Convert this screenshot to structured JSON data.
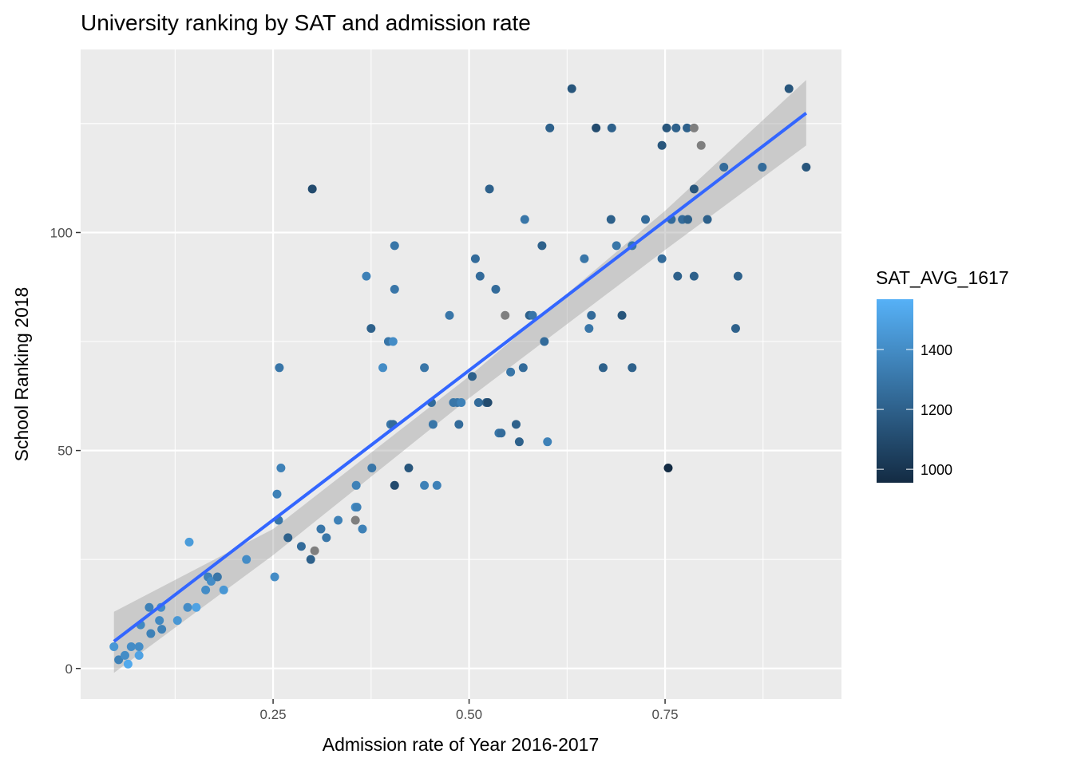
{
  "chart_data": {
    "type": "scatter",
    "title": "University ranking by SAT and admission rate",
    "xlabel": "Admission rate of Year 2016-2017",
    "ylabel": "School Ranking 2018",
    "xlim": [
      0.0045,
      0.975
    ],
    "ylim": [
      -7,
      142
    ],
    "x_ticks": [
      0.25,
      0.5,
      0.75
    ],
    "x_tick_labels": [
      "0.25",
      "0.50",
      "0.75"
    ],
    "y_ticks": [
      0,
      50,
      100
    ],
    "y_tick_labels": [
      "0",
      "50",
      "100"
    ],
    "grid": true,
    "legend": {
      "title": "SAT_AVG_1617",
      "placement": "right",
      "range": [
        955,
        1568
      ],
      "ticks": [
        1000,
        1200,
        1400
      ],
      "tick_labels": [
        "1000",
        "1200",
        "1400"
      ],
      "low_color": "#132B43",
      "high_color": "#56B1F7",
      "na_color": "#7F7F7F"
    },
    "fit": {
      "method": "lm",
      "color": "#3366FF",
      "x": [
        0.047,
        0.93
      ],
      "y": [
        6.2,
        127.4
      ],
      "ribbon_x": [
        0.047,
        0.25,
        0.5,
        0.75,
        0.93
      ],
      "ribbon_low": [
        -1,
        26,
        62,
        96,
        120
      ],
      "ribbon_high": [
        13,
        32,
        67,
        105,
        135
      ]
    },
    "points": [
      [
        0.047,
        5,
        1450
      ],
      [
        0.053,
        2,
        1350
      ],
      [
        0.061,
        3,
        1400
      ],
      [
        0.065,
        1,
        1530
      ],
      [
        0.069,
        5,
        1400
      ],
      [
        0.079,
        3,
        1500
      ],
      [
        0.079,
        5,
        1400
      ],
      [
        0.081,
        10,
        1380
      ],
      [
        0.092,
        14,
        1350
      ],
      [
        0.094,
        8,
        1350
      ],
      [
        0.105,
        11,
        1380
      ],
      [
        0.107,
        14,
        1400
      ],
      [
        0.108,
        9,
        1350
      ],
      [
        0.128,
        11,
        1450
      ],
      [
        0.141,
        14,
        1400
      ],
      [
        0.143,
        29,
        1470
      ],
      [
        0.152,
        14,
        1500
      ],
      [
        0.164,
        18,
        1400
      ],
      [
        0.167,
        21,
        1350
      ],
      [
        0.171,
        20,
        1400
      ],
      [
        0.179,
        21,
        1300
      ],
      [
        0.187,
        18,
        1450
      ],
      [
        0.216,
        25,
        1400
      ],
      [
        0.252,
        21,
        1400
      ],
      [
        0.255,
        40,
        1350
      ],
      [
        0.257,
        34,
        1300
      ],
      [
        0.258,
        69,
        1300
      ],
      [
        0.26,
        46,
        1350
      ],
      [
        0.269,
        30,
        1200
      ],
      [
        0.286,
        28,
        1250
      ],
      [
        0.298,
        25,
        1200
      ],
      [
        0.3,
        110,
        1100
      ],
      [
        0.303,
        27,
        null
      ],
      [
        0.311,
        32,
        1300
      ],
      [
        0.318,
        30,
        1300
      ],
      [
        0.333,
        34,
        1350
      ],
      [
        0.355,
        37,
        1400
      ],
      [
        0.356,
        42,
        1350
      ],
      [
        0.355,
        34,
        null
      ],
      [
        0.357,
        37,
        1350
      ],
      [
        0.364,
        32,
        1350
      ],
      [
        0.369,
        90,
        1350
      ],
      [
        0.375,
        78,
        1200
      ],
      [
        0.376,
        46,
        1300
      ],
      [
        0.39,
        69,
        1400
      ],
      [
        0.397,
        75,
        1300
      ],
      [
        0.403,
        75,
        1400
      ],
      [
        0.4,
        56,
        1300
      ],
      [
        0.403,
        56,
        1250
      ],
      [
        0.405,
        97,
        1300
      ],
      [
        0.405,
        87,
        1300
      ],
      [
        0.405,
        42,
        1100
      ],
      [
        0.423,
        46,
        1150
      ],
      [
        0.443,
        69,
        1300
      ],
      [
        0.443,
        42,
        1350
      ],
      [
        0.452,
        61,
        1250
      ],
      [
        0.454,
        56,
        1300
      ],
      [
        0.459,
        42,
        1350
      ],
      [
        0.475,
        81,
        1300
      ],
      [
        0.48,
        61,
        1300
      ],
      [
        0.485,
        61,
        1300
      ],
      [
        0.49,
        61,
        1350
      ],
      [
        0.487,
        56,
        1250
      ],
      [
        0.504,
        67,
        1200
      ],
      [
        0.508,
        94,
        1250
      ],
      [
        0.512,
        61,
        1250
      ],
      [
        0.514,
        90,
        1250
      ],
      [
        0.522,
        61,
        1200
      ],
      [
        0.524,
        61,
        1100
      ],
      [
        0.526,
        110,
        1200
      ],
      [
        0.534,
        87,
        1250
      ],
      [
        0.538,
        54,
        1300
      ],
      [
        0.541,
        54,
        1250
      ],
      [
        0.546,
        81,
        null
      ],
      [
        0.553,
        68,
        1300
      ],
      [
        0.56,
        56,
        1200
      ],
      [
        0.564,
        52,
        1200
      ],
      [
        0.569,
        69,
        1250
      ],
      [
        0.571,
        103,
        1300
      ],
      [
        0.577,
        81,
        1200
      ],
      [
        0.581,
        81,
        1300
      ],
      [
        0.593,
        97,
        1200
      ],
      [
        0.596,
        75,
        1250
      ],
      [
        0.6,
        52,
        1350
      ],
      [
        0.603,
        124,
        1200
      ],
      [
        0.631,
        133,
        1150
      ],
      [
        0.647,
        94,
        1300
      ],
      [
        0.653,
        78,
        1300
      ],
      [
        0.656,
        81,
        1250
      ],
      [
        0.662,
        124,
        1100
      ],
      [
        0.671,
        69,
        1200
      ],
      [
        0.681,
        103,
        1200
      ],
      [
        0.682,
        124,
        1200
      ],
      [
        0.688,
        97,
        1300
      ],
      [
        0.695,
        81,
        1150
      ],
      [
        0.708,
        69,
        1200
      ],
      [
        0.708,
        97,
        1300
      ],
      [
        0.725,
        103,
        1250
      ],
      [
        0.746,
        120,
        1150
      ],
      [
        0.746,
        94,
        1250
      ],
      [
        0.752,
        124,
        1150
      ],
      [
        0.754,
        46,
        950
      ],
      [
        0.758,
        103,
        1250
      ],
      [
        0.764,
        124,
        1200
      ],
      [
        0.766,
        90,
        1200
      ],
      [
        0.772,
        103,
        1250
      ],
      [
        0.778,
        124,
        1200
      ],
      [
        0.779,
        103,
        1200
      ],
      [
        0.787,
        124,
        null
      ],
      [
        0.787,
        110,
        1150
      ],
      [
        0.787,
        90,
        1200
      ],
      [
        0.796,
        120,
        null
      ],
      [
        0.804,
        103,
        1200
      ],
      [
        0.825,
        115,
        1250
      ],
      [
        0.84,
        78,
        1200
      ],
      [
        0.843,
        90,
        1200
      ],
      [
        0.874,
        115,
        1250
      ],
      [
        0.908,
        133,
        1150
      ],
      [
        0.93,
        115,
        1150
      ]
    ]
  }
}
